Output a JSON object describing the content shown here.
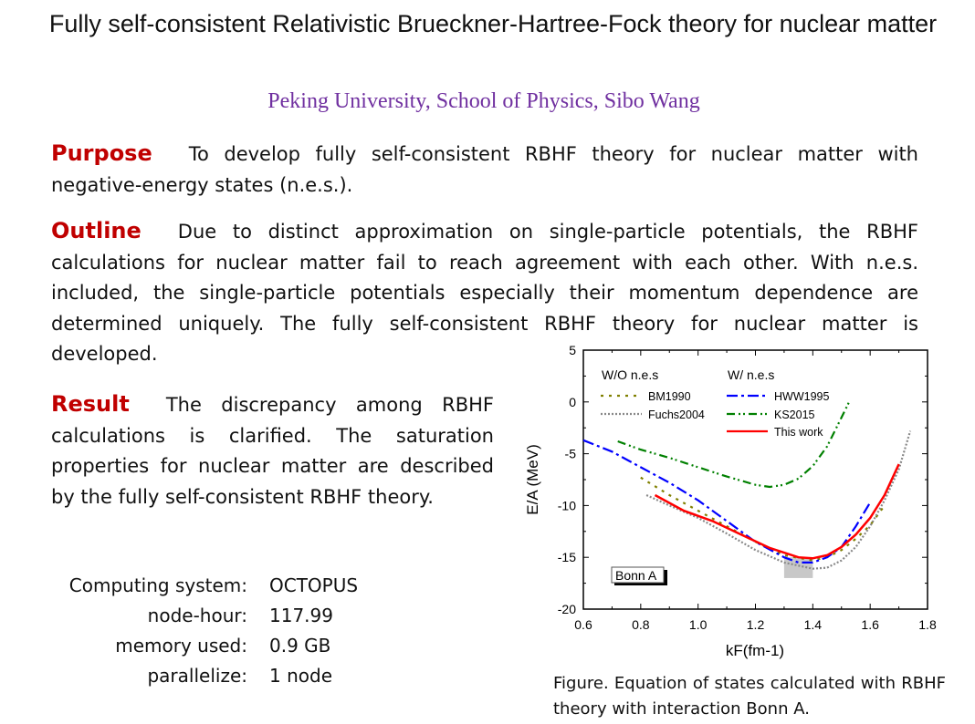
{
  "title": "Fully self-consistent Relativistic Brueckner-Hartree-Fock theory for nuclear matter",
  "author": "Peking University, School of Physics, Sibo Wang",
  "purpose": {
    "heading": "Purpose",
    "text": "To develop fully self-consistent RBHF theory for nuclear matter with negative-energy states (n.e.s.)."
  },
  "outline": {
    "heading": "Outline",
    "text": "Due to distinct approximation on single-particle potentials, the RBHF calculations for nuclear matter fail to reach agreement with each other. With n.e.s. included, the single-particle potentials especially their momentum dependence are determined uniquely. The fully self-consistent RBHF theory for nuclear matter is developed."
  },
  "result": {
    "heading": "Result",
    "text": "The discrepancy among RBHF calculations is clarified. The saturation properties for nuclear matter are described by the fully self-consistent RBHF theory."
  },
  "computing": [
    {
      "label": "Computing system:",
      "value": "OCTOPUS"
    },
    {
      "label": "node-hour:",
      "value": "117.99"
    },
    {
      "label": "memory used:",
      "value": "0.9 GB"
    },
    {
      "label": "parallelize:",
      "value": "1 node"
    }
  ],
  "caption": "Figure. Equation of states calculated with RBHF theory with interaction Bonn A.",
  "chart_data": {
    "type": "line",
    "xlabel": "kF(fm-1)",
    "ylabel": "E/A (MeV)",
    "xlim": [
      0.6,
      1.8
    ],
    "ylim": [
      -20,
      5
    ],
    "xticks": [
      "0.6",
      "0.8",
      "1.0",
      "1.2",
      "1.4",
      "1.6",
      "1.8"
    ],
    "yticks": [
      "5",
      "0",
      "-5",
      "-10",
      "-15",
      "-20"
    ],
    "legend_groups": [
      "W/O n.e.s",
      "W/ n.e.s"
    ],
    "annotation": "Bonn A",
    "saturation_box": {
      "x": [
        1.3,
        1.4
      ],
      "y": [
        -17,
        -15
      ]
    },
    "series": [
      {
        "name": "BM1990",
        "group": 0,
        "color": "#808000",
        "dash": "3,6",
        "x": [
          0.8,
          0.9,
          1.0,
          1.1,
          1.2,
          1.3,
          1.4,
          1.45,
          1.5,
          1.55,
          1.6,
          1.65
        ],
        "y": [
          -7.3,
          -9,
          -10.5,
          -12,
          -13.5,
          -14.8,
          -15.3,
          -15,
          -14.3,
          -13.2,
          -11.9,
          -10
        ]
      },
      {
        "name": "Fuchs2004",
        "group": 0,
        "color": "#888888",
        "dash": "2,2",
        "x": [
          0.82,
          0.9,
          1.0,
          1.1,
          1.2,
          1.3,
          1.4,
          1.45,
          1.5,
          1.55,
          1.6,
          1.65,
          1.7,
          1.74
        ],
        "y": [
          -9,
          -10,
          -11.2,
          -12.7,
          -14.3,
          -15.5,
          -16.1,
          -16,
          -15.3,
          -14,
          -12,
          -9.5,
          -6.5,
          -2.8
        ]
      },
      {
        "name": "HWW1995",
        "group": 1,
        "color": "#0000ff",
        "dash": "12,4,3,4",
        "x": [
          0.6,
          0.7,
          0.8,
          0.9,
          1.0,
          1.1,
          1.2,
          1.3,
          1.35,
          1.4,
          1.45,
          1.5,
          1.55,
          1.6
        ],
        "y": [
          -3.7,
          -4.8,
          -6.3,
          -7.8,
          -9.5,
          -11.5,
          -13.5,
          -15,
          -15.5,
          -15.5,
          -15,
          -14,
          -12,
          -9.7
        ]
      },
      {
        "name": "KS2015",
        "group": 1,
        "color": "#008000",
        "dash": "9,4,2,3,2,4",
        "x": [
          0.72,
          0.8,
          0.9,
          1.0,
          1.1,
          1.2,
          1.25,
          1.3,
          1.35,
          1.4,
          1.45,
          1.5,
          1.53
        ],
        "y": [
          -3.8,
          -4.6,
          -5.4,
          -6.3,
          -7.2,
          -8,
          -8.2,
          -8,
          -7.4,
          -6.2,
          -4.3,
          -1.5,
          0.2
        ]
      },
      {
        "name": "This work",
        "group": 1,
        "color": "#ff0000",
        "dash": "",
        "x": [
          0.85,
          0.95,
          1.05,
          1.15,
          1.25,
          1.35,
          1.4,
          1.45,
          1.5,
          1.55,
          1.6,
          1.65,
          1.7
        ],
        "y": [
          -9,
          -10.5,
          -11.5,
          -12.8,
          -14.1,
          -15,
          -15.1,
          -14.8,
          -14,
          -12.8,
          -11.2,
          -9,
          -6
        ]
      }
    ]
  }
}
